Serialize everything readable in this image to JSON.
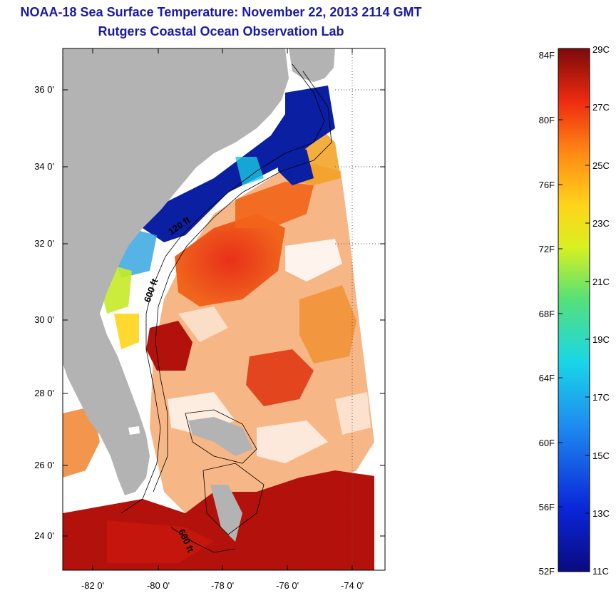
{
  "header": {
    "title": "NOAA-18 Sea Surface Temperature:  November 22, 2013 2114 GMT",
    "subtitle": "Rutgers Coastal Ocean Observation Lab"
  },
  "map": {
    "lat_ticks": [
      "36 0'",
      "34 0'",
      "32 0'",
      "30 0'",
      "28 0'",
      "26 0'",
      "24 0'"
    ],
    "lon_ticks": [
      "-82 0'",
      "-80 0'",
      "-78 0'",
      "-76 0'",
      "-74 0'"
    ],
    "contour_labels": [
      "120 ft",
      "600 ft",
      "600 ft"
    ],
    "colors": {
      "land": "#b3b3b3",
      "cloud": "#ffffff",
      "warm": "#d82a14",
      "hot": "#b3120c",
      "cold": "#0b1fa3"
    }
  },
  "colorbar": {
    "fahrenheit": [
      "84F",
      "80F",
      "76F",
      "72F",
      "68F",
      "64F",
      "60F",
      "56F",
      "52F"
    ],
    "celsius": [
      "29C",
      "27C",
      "25C",
      "23C",
      "21C",
      "19C",
      "17C",
      "15C",
      "13C",
      "11C"
    ]
  }
}
